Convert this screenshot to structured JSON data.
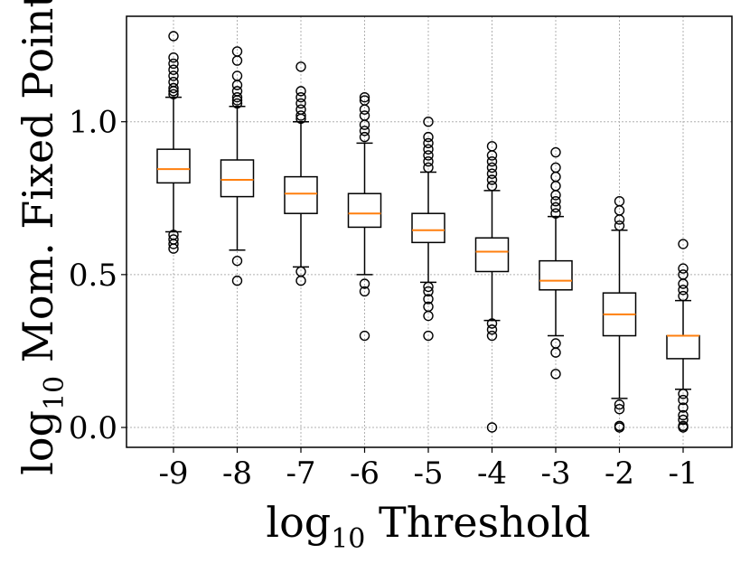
{
  "chart_data": {
    "type": "box",
    "xlabel": {
      "main": "log",
      "sub": "10",
      "rest": " Threshold"
    },
    "ylabel": {
      "main": "log",
      "sub": "10",
      "rest": " Mom. Fixed Point"
    },
    "categories": [
      "-9",
      "-8",
      "-7",
      "-6",
      "-5",
      "-4",
      "-3",
      "-2",
      "-1"
    ],
    "y_ticks": [
      {
        "value": 0.0,
        "label": "0.0"
      },
      {
        "value": 0.5,
        "label": "0.5"
      },
      {
        "value": 1.0,
        "label": "1.0"
      }
    ],
    "ylim": [
      -0.065,
      1.345
    ],
    "grid": true,
    "colors": {
      "box": "#000000",
      "median": "#ff7f0e",
      "grid": "#b0b0b0",
      "flier": "#000000"
    },
    "boxes": [
      {
        "category": "-9",
        "whisker_low": 0.64,
        "q1": 0.8,
        "median": 0.845,
        "q3": 0.91,
        "whisker_high": 1.08,
        "fliers": [
          0.585,
          0.6,
          0.615,
          0.63,
          1.09,
          1.1,
          1.11,
          1.13,
          1.15,
          1.17,
          1.19,
          1.21,
          1.28
        ]
      },
      {
        "category": "-8",
        "whisker_low": 0.58,
        "q1": 0.755,
        "median": 0.81,
        "q3": 0.875,
        "whisker_high": 1.05,
        "fliers": [
          0.48,
          0.545,
          1.06,
          1.07,
          1.08,
          1.1,
          1.12,
          1.15,
          1.2,
          1.23
        ]
      },
      {
        "category": "-7",
        "whisker_low": 0.525,
        "q1": 0.7,
        "median": 0.765,
        "q3": 0.82,
        "whisker_high": 1.0,
        "fliers": [
          0.48,
          0.51,
          1.01,
          1.02,
          1.04,
          1.06,
          1.08,
          1.1,
          1.18
        ]
      },
      {
        "category": "-6",
        "whisker_low": 0.5,
        "q1": 0.655,
        "median": 0.7,
        "q3": 0.765,
        "whisker_high": 0.93,
        "fliers": [
          0.3,
          0.445,
          0.47,
          0.95,
          0.97,
          0.99,
          1.02,
          1.04,
          1.07,
          1.08
        ]
      },
      {
        "category": "-5",
        "whisker_low": 0.475,
        "q1": 0.605,
        "median": 0.645,
        "q3": 0.7,
        "whisker_high": 0.835,
        "fliers": [
          0.3,
          0.365,
          0.395,
          0.42,
          0.445,
          0.46,
          0.85,
          0.87,
          0.89,
          0.91,
          0.93,
          0.95,
          1.0
        ]
      },
      {
        "category": "-4",
        "whisker_low": 0.35,
        "q1": 0.51,
        "median": 0.575,
        "q3": 0.62,
        "whisker_high": 0.775,
        "fliers": [
          0.0,
          0.3,
          0.32,
          0.34,
          0.79,
          0.81,
          0.83,
          0.85,
          0.87,
          0.89,
          0.92
        ]
      },
      {
        "category": "-3",
        "whisker_low": 0.3,
        "q1": 0.45,
        "median": 0.48,
        "q3": 0.545,
        "whisker_high": 0.69,
        "fliers": [
          0.175,
          0.245,
          0.275,
          0.7,
          0.72,
          0.74,
          0.76,
          0.79,
          0.82,
          0.85,
          0.9
        ]
      },
      {
        "category": "-2",
        "whisker_low": 0.095,
        "q1": 0.3,
        "median": 0.37,
        "q3": 0.44,
        "whisker_high": 0.645,
        "fliers": [
          0.0,
          0.005,
          0.06,
          0.075,
          0.66,
          0.68,
          0.71,
          0.74
        ]
      },
      {
        "category": "-1",
        "whisker_low": 0.125,
        "q1": 0.225,
        "median": 0.3,
        "q3": 0.3,
        "whisker_high": 0.415,
        "fliers": [
          0.0,
          0.005,
          0.025,
          0.04,
          0.065,
          0.09,
          0.11,
          0.43,
          0.45,
          0.47,
          0.5,
          0.52,
          0.6
        ]
      }
    ]
  }
}
